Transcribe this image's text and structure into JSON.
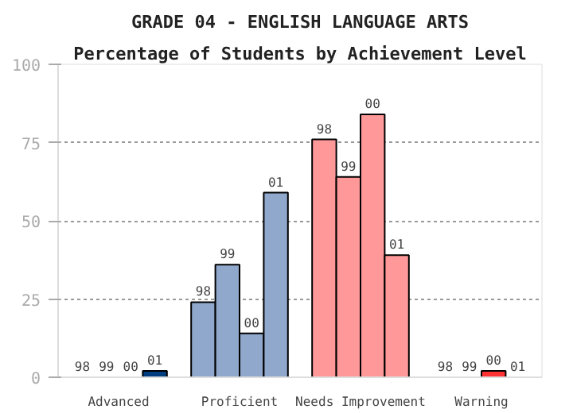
{
  "chart_data": {
    "type": "bar",
    "title": "GRADE 04 - ENGLISH LANGUAGE ARTS",
    "subtitle": "Percentage of Students by Achievement Level",
    "categories": [
      "Advanced",
      "Proficient",
      "Needs Improvement",
      "Warning"
    ],
    "series": [
      {
        "name": "98",
        "colors": [
          "#003f7f",
          "#8fa8cc",
          "#ff9999",
          "#ff3333"
        ],
        "values": [
          0,
          24,
          76,
          0
        ]
      },
      {
        "name": "99",
        "colors": [
          "#003f7f",
          "#8fa8cc",
          "#ff9999",
          "#ff3333"
        ],
        "values": [
          0,
          36,
          64,
          0
        ]
      },
      {
        "name": "00",
        "colors": [
          "#003f7f",
          "#8fa8cc",
          "#ff9999",
          "#ff3333"
        ],
        "values": [
          0,
          14,
          84,
          2
        ]
      },
      {
        "name": "01",
        "colors": [
          "#003f7f",
          "#8fa8cc",
          "#ff9999",
          "#ff3333"
        ],
        "values": [
          2,
          59,
          39,
          0
        ]
      }
    ],
    "ylim": [
      0,
      100
    ],
    "yticks": [
      0,
      25,
      50,
      75,
      100
    ],
    "grid": "y"
  }
}
